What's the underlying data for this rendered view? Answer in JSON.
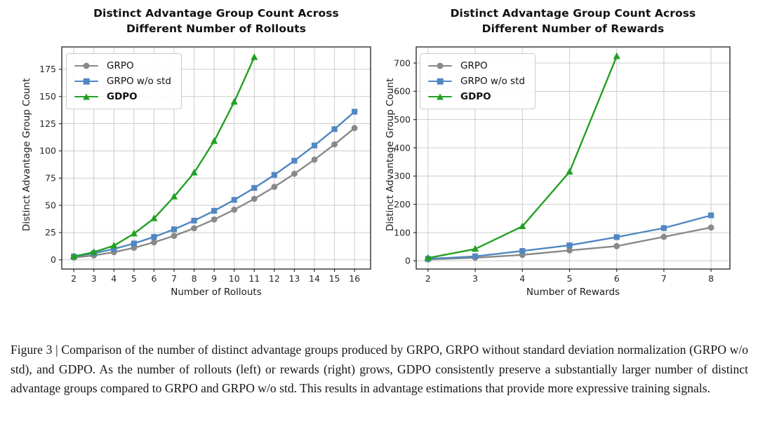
{
  "figure": {
    "caption": "Figure 3 | Comparison of the number of distinct advantage groups produced by GRPO, GRPO without standard deviation normalization (GRPO w/o std), and GDPO. As the number of rollouts (left) or rewards (right) grows, GDPO consistently preserve a substantially larger number of distinct advantage groups compared to GRPO and GRPO w/o std. This results in advantage estimations that provide more expressive training signals."
  },
  "style_colors": {
    "grid": "#cccccc",
    "spine": "#2f2f2f",
    "tick": "#333333",
    "tick_label": "#262626",
    "background": "#ffffff"
  },
  "chart_data": [
    {
      "type": "line",
      "title": "Distinct Advantage Group Count Across\nDifferent Number of Rollouts",
      "xlabel": "Number of Rollouts",
      "ylabel": "Distinct Advantage Group Count",
      "xticks": [
        2,
        3,
        4,
        5,
        6,
        7,
        8,
        9,
        10,
        11,
        12,
        13,
        14,
        15,
        16
      ],
      "yticks": [
        0,
        25,
        50,
        75,
        100,
        125,
        150,
        175
      ],
      "xlim": [
        1.4,
        16.8
      ],
      "ylim": [
        -8.5,
        195.5
      ],
      "grid": true,
      "legend_position": "upper left",
      "series": [
        {
          "name": "GRPO",
          "color": "#898989",
          "marker": "circle",
          "bold": false,
          "x": [
            2,
            3,
            4,
            5,
            6,
            7,
            8,
            9,
            10,
            11,
            12,
            13,
            14,
            15,
            16
          ],
          "values": [
            2,
            4,
            7,
            11,
            16,
            22,
            29,
            37,
            46,
            56,
            67,
            79,
            92,
            106,
            121
          ]
        },
        {
          "name": "GRPO w/o std",
          "color": "#5187c2",
          "marker": "square",
          "bold": false,
          "x": [
            2,
            3,
            4,
            5,
            6,
            7,
            8,
            9,
            10,
            11,
            12,
            13,
            14,
            15,
            16
          ],
          "values": [
            3,
            6,
            10,
            15,
            21,
            28,
            36,
            45,
            55,
            66,
            78,
            91,
            105,
            120,
            136
          ]
        },
        {
          "name": "GDPO",
          "color": "#22a022",
          "marker": "triangle",
          "bold": true,
          "x": [
            2,
            3,
            4,
            5,
            6,
            7,
            8,
            9,
            10,
            11
          ],
          "values": [
            3,
            7,
            13,
            24,
            38,
            58,
            80,
            109,
            145,
            186
          ]
        }
      ]
    },
    {
      "type": "line",
      "title": "Distinct Advantage Group Count Across\nDifferent Number of Rewards",
      "xlabel": "Number of Rewards",
      "ylabel": "Distinct Advantage Group Count",
      "xticks": [
        2,
        3,
        4,
        5,
        6,
        7,
        8
      ],
      "yticks": [
        0,
        100,
        200,
        300,
        400,
        500,
        600,
        700
      ],
      "xlim": [
        1.75,
        8.4
      ],
      "ylim": [
        -29,
        757
      ],
      "grid": true,
      "legend_position": "upper left",
      "series": [
        {
          "name": "GRPO",
          "color": "#898989",
          "marker": "circle",
          "bold": false,
          "x": [
            2,
            3,
            4,
            5,
            6,
            7,
            8
          ],
          "values": [
            5,
            11,
            21,
            37,
            52,
            85,
            118
          ]
        },
        {
          "name": "GRPO w/o std",
          "color": "#5187c2",
          "marker": "square",
          "bold": false,
          "x": [
            2,
            3,
            4,
            5,
            6,
            7,
            8
          ],
          "values": [
            7,
            16,
            35,
            55,
            84,
            116,
            161
          ]
        },
        {
          "name": "GDPO",
          "color": "#22a022",
          "marker": "triangle",
          "bold": true,
          "x": [
            2,
            3,
            4,
            5,
            6
          ],
          "values": [
            10,
            42,
            122,
            315,
            724
          ]
        }
      ]
    }
  ]
}
